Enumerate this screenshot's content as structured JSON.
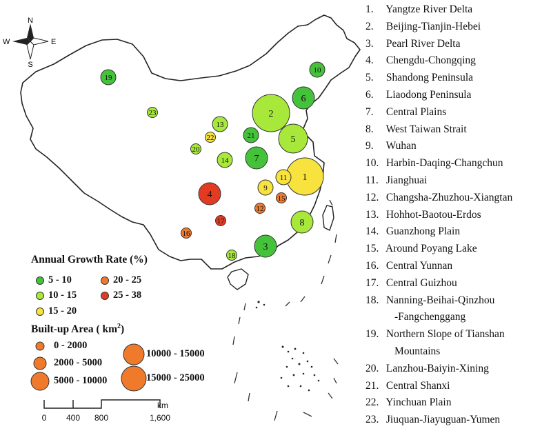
{
  "regions": [
    {
      "id": "1",
      "num": "1.",
      "name": "Yangtze River Delta",
      "rate_class": "15 - 20",
      "area_class": "15000 - 25000"
    },
    {
      "id": "2",
      "num": "2.",
      "name": "Beijing-Tianjin-Hebei",
      "rate_class": "10 - 15",
      "area_class": "15000 - 25000"
    },
    {
      "id": "3",
      "num": "3.",
      "name": "Pearl River Delta",
      "rate_class": "5 - 10",
      "area_class": "5000 - 10000"
    },
    {
      "id": "4",
      "num": "4.",
      "name": "Chengdu-Chongqing",
      "rate_class": "25 - 38",
      "area_class": "5000 - 10000"
    },
    {
      "id": "5",
      "num": "5.",
      "name": "Shandong Peninsula",
      "rate_class": "10 - 15",
      "area_class": "10000 - 15000"
    },
    {
      "id": "6",
      "num": "6.",
      "name": "Liaodong Peninsula",
      "rate_class": "5 - 10",
      "area_class": "5000 - 10000"
    },
    {
      "id": "7",
      "num": "7.",
      "name": "Central Plains",
      "rate_class": "5 - 10",
      "area_class": "5000 - 10000"
    },
    {
      "id": "8",
      "num": "8.",
      "name": "West Taiwan Strait",
      "rate_class": "10 - 15",
      "area_class": "5000 - 10000"
    },
    {
      "id": "9",
      "num": "9.",
      "name": "Wuhan",
      "rate_class": "15 - 20",
      "area_class": "2000 - 5000"
    },
    {
      "id": "10",
      "num": "10.",
      "name": "Harbin-Daqing-Changchun",
      "rate_class": "5 - 10",
      "area_class": "2000 - 5000"
    },
    {
      "id": "11",
      "num": "11.",
      "name": "Jianghuai",
      "rate_class": "15 - 20",
      "area_class": "2000 - 5000"
    },
    {
      "id": "12",
      "num": "12.",
      "name": "Changsha-Zhuzhou-Xiangtan",
      "rate_class": "20 - 25",
      "area_class": "0 - 2000"
    },
    {
      "id": "13",
      "num": "13.",
      "name": "Hohhot-Baotou-Erdos",
      "rate_class": "10 - 15",
      "area_class": "2000 - 5000"
    },
    {
      "id": "14",
      "num": "14.",
      "name": "Guanzhong Plain",
      "rate_class": "10 - 15",
      "area_class": "2000 - 5000"
    },
    {
      "id": "15",
      "num": "15.",
      "name": "Around Poyang Lake",
      "rate_class": "20 - 25",
      "area_class": "0 - 2000"
    },
    {
      "id": "16",
      "num": "16.",
      "name": "Central Yunnan",
      "rate_class": "20 - 25",
      "area_class": "0 - 2000"
    },
    {
      "id": "17",
      "num": "17.",
      "name": "Central Guizhou",
      "rate_class": "25 - 38",
      "area_class": "0 - 2000"
    },
    {
      "id": "18",
      "num": "18.",
      "name": "Nanning-Beihai-Qinzhou",
      "name_cont": "-Fangchenggang",
      "rate_class": "10 - 15",
      "area_class": "0 - 2000"
    },
    {
      "id": "19",
      "num": "19.",
      "name": "Northern Slope of Tianshan",
      "name_cont": "Mountains",
      "rate_class": "5 - 10",
      "area_class": "2000 - 5000"
    },
    {
      "id": "20",
      "num": "20.",
      "name": "Lanzhou-Baiyin-Xining",
      "rate_class": "10 - 15",
      "area_class": "0 - 2000"
    },
    {
      "id": "21",
      "num": "21.",
      "name": "Central Shanxi",
      "rate_class": "5 - 10",
      "area_class": "2000 - 5000"
    },
    {
      "id": "22",
      "num": "22.",
      "name": "Yinchuan Plain",
      "rate_class": "15 - 20",
      "area_class": "0 - 2000"
    },
    {
      "id": "23",
      "num": "23.",
      "name": "Jiuquan-Jiayuguan-Yumen",
      "rate_class": "10 - 15",
      "area_class": "0 - 2000"
    }
  ],
  "legend": {
    "growth_title": "Annual Growth Rate (%)",
    "growth_classes": [
      {
        "label": "5 - 10",
        "color": "#44c23a"
      },
      {
        "label": "10 - 15",
        "color": "#a8e83a"
      },
      {
        "label": "15 - 20",
        "color": "#f7e23e"
      },
      {
        "label": "20 - 25",
        "color": "#ee7a2e"
      },
      {
        "label": "25 - 38",
        "color": "#e23b22"
      }
    ],
    "area_title_pre": "Built-up Area ( km",
    "area_title_sup": "2",
    "area_title_post": ")",
    "area_classes": [
      {
        "label": "0 - 2000",
        "color": "#f07a2c"
      },
      {
        "label": "2000 - 5000",
        "color": "#f07a2c"
      },
      {
        "label": "5000 - 10000",
        "color": "#f07a2c"
      },
      {
        "label": "10000 - 15000",
        "color": "#f07a2c"
      },
      {
        "label": "15000 - 25000",
        "color": "#f07a2c"
      }
    ]
  },
  "compass": {
    "n": "N",
    "s": "S",
    "e": "E",
    "w": "W"
  },
  "scale_bar": {
    "ticks": [
      "0",
      "400",
      "800",
      "1,600"
    ],
    "unit": "km"
  },
  "colors": {
    "outline": "#222222",
    "circle_stroke": "#333333"
  }
}
